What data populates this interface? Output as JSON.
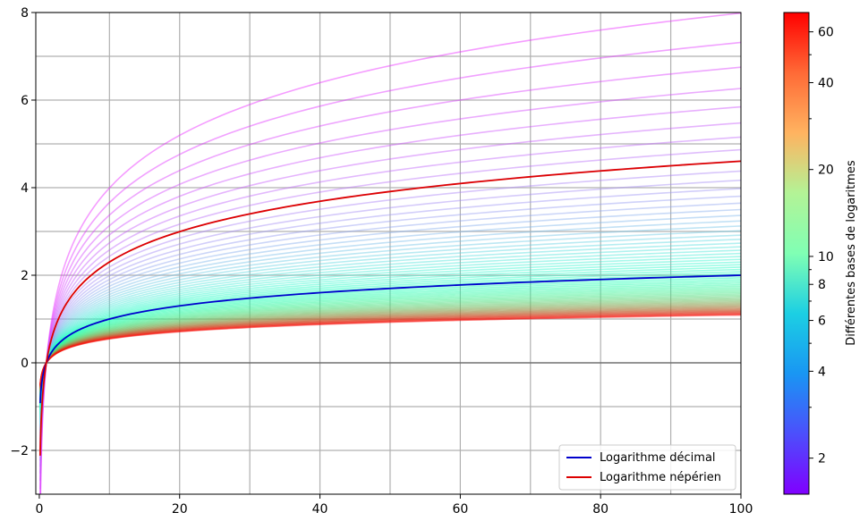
{
  "chart_data": {
    "type": "line",
    "xlim": [
      -0.5,
      100
    ],
    "ylim": [
      -3,
      8
    ],
    "x_ticks": [
      0,
      20,
      40,
      60,
      80,
      100
    ],
    "x_tick_labels": [
      "0",
      "20",
      "40",
      "60",
      "80",
      "100"
    ],
    "y_ticks": [
      -2,
      0,
      2,
      4,
      6,
      8
    ],
    "y_tick_labels": [
      "−2",
      "0",
      "2",
      "4",
      "6",
      "8"
    ],
    "grid": true,
    "grid_x": [
      10,
      20,
      30,
      40,
      50,
      60,
      70,
      80,
      90
    ],
    "grid_y": [
      -2,
      -1,
      0,
      1,
      2,
      3,
      4,
      5,
      6,
      7,
      8
    ],
    "legend_position": "lower-right",
    "series": [
      {
        "name": "Logarithme décimal",
        "function": "log10(x)",
        "base": 10,
        "color": "#0000cc"
      },
      {
        "name": "Logarithme népérien",
        "function": "ln(x)",
        "base": 2.718281828,
        "color": "#dd0000"
      }
    ],
    "family": {
      "function": "log_b(x)",
      "colormap": "rainbow",
      "bases_range": [
        1.78,
        68
      ],
      "bases_scale": "log",
      "opacity": 0.45
    },
    "colorbar": {
      "label": "Différentes bases de logaritmes",
      "scale": "log",
      "range": [
        1.5,
        70
      ],
      "ticks": [
        2,
        4,
        6,
        8,
        10,
        20,
        40,
        60
      ],
      "tick_labels": [
        "2",
        "4",
        "6",
        "8",
        "10",
        "20",
        "40",
        "60"
      ],
      "minor_ticks": [
        3,
        5,
        7,
        9,
        30,
        50
      ]
    }
  }
}
